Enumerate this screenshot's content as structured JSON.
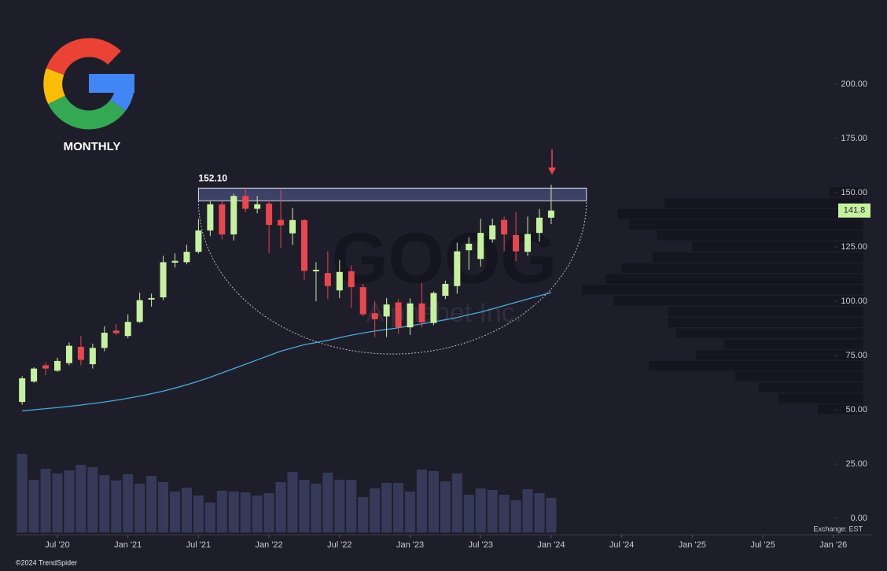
{
  "chart_data": {
    "type": "candlestick",
    "timeframe": "MONTHLY",
    "symbol": "GOOG",
    "company": "Alphabet Inc.",
    "x": [
      "2020-04",
      "2020-05",
      "2020-06",
      "2020-07",
      "2020-08",
      "2020-09",
      "2020-10",
      "2020-11",
      "2020-12",
      "2021-01",
      "2021-02",
      "2021-03",
      "2021-04",
      "2021-05",
      "2021-06",
      "2021-07",
      "2021-08",
      "2021-09",
      "2021-10",
      "2021-11",
      "2021-12",
      "2022-01",
      "2022-02",
      "2022-03",
      "2022-04",
      "2022-05",
      "2022-06",
      "2022-07",
      "2022-08",
      "2022-09",
      "2022-10",
      "2022-11",
      "2022-12",
      "2023-01",
      "2023-02",
      "2023-03",
      "2023-04",
      "2023-05",
      "2023-06",
      "2023-07",
      "2023-08",
      "2023-09",
      "2023-10",
      "2023-11",
      "2023-12",
      "2024-01"
    ],
    "open": [
      53.6,
      63,
      70.5,
      68,
      71.5,
      79,
      71,
      78.5,
      86.5,
      84,
      90.5,
      100.8,
      101.8,
      117.8,
      118,
      122.8,
      132.6,
      144.7,
      130.8,
      148.5,
      142.6,
      145,
      137.5,
      131.3,
      137.4,
      113.8,
      113,
      105,
      113.8,
      106.5,
      94.5,
      93,
      99.5,
      88,
      99,
      90,
      102.5,
      107,
      123.5,
      119.5,
      128.5,
      137.5,
      130.5,
      122.8,
      131.5,
      138.5
    ],
    "high": [
      65.5,
      69.6,
      72,
      74,
      81,
      84,
      80.5,
      88.5,
      89.5,
      94,
      104,
      103.5,
      121,
      122,
      126,
      138,
      146,
      146,
      149.5,
      152.1,
      148.5,
      146.5,
      151.5,
      143,
      138,
      118,
      123,
      119,
      116.5,
      108,
      100,
      101.5,
      101,
      101.3,
      108.5,
      104.5,
      109.5,
      127,
      129.5,
      138,
      138,
      139,
      141,
      139,
      142.5,
      153.7
    ],
    "low": [
      52.4,
      62.5,
      66,
      67.5,
      70.5,
      70.5,
      69,
      77,
      84.5,
      83,
      90,
      97.5,
      100.5,
      115.5,
      117,
      122,
      130,
      128.5,
      128,
      141,
      140.5,
      122.3,
      124.5,
      126,
      110,
      100,
      101,
      101.5,
      97,
      93,
      83.6,
      83.5,
      85,
      84.5,
      88,
      89,
      101,
      103.5,
      114.5,
      116,
      127,
      123,
      118.5,
      121,
      127.5,
      135.5
    ],
    "close": [
      64.5,
      69,
      69,
      72.5,
      79.5,
      73,
      78.5,
      85.5,
      85.3,
      90.5,
      100.5,
      101.5,
      118,
      118.6,
      122.8,
      132.6,
      144.7,
      130.8,
      148.5,
      142.6,
      144.7,
      135.2,
      135,
      137.4,
      114,
      114.5,
      107,
      113.5,
      106.5,
      94,
      91.7,
      98.5,
      88,
      99,
      90.3,
      103.8,
      108,
      123,
      126.5,
      131.5,
      135,
      130.8,
      123,
      131,
      138.5,
      141.8
    ],
    "up_color": "#c6f2a0",
    "down_color": "#e9464f",
    "ma": {
      "color": "#4aa9dc",
      "values": [
        49.5,
        50,
        50.5,
        51,
        51.6,
        52.2,
        52.9,
        53.6,
        54.4,
        55.3,
        56.3,
        57.4,
        58.6,
        60,
        61.5,
        63.2,
        65,
        67,
        69,
        71,
        73,
        75,
        77,
        78.5,
        80,
        81,
        82,
        83.2,
        84.4,
        85.4,
        86.3,
        87,
        87.8,
        88.7,
        89.6,
        90.5,
        91.5,
        92.5,
        93.8,
        95,
        96.5,
        98,
        99.5,
        101,
        102.5,
        104
      ]
    },
    "volume": {
      "color": "#363a58",
      "ylim": [
        0,
        105
      ],
      "values": [
        100,
        67,
        81,
        75,
        79,
        86,
        83,
        73,
        66,
        74,
        62,
        72,
        64,
        52,
        57,
        47,
        38,
        53,
        52,
        51,
        47,
        50,
        64,
        77,
        67,
        62,
        76,
        67,
        67,
        45,
        56,
        63,
        63,
        52,
        80,
        78,
        65,
        75,
        48,
        56,
        54,
        48,
        41,
        55,
        50,
        44
      ]
    },
    "volume_profile": {
      "color": "#15151f",
      "xlim": [
        0,
        400
      ],
      "prices": [
        150,
        145,
        140,
        135,
        130,
        125,
        120,
        115,
        110,
        105,
        100,
        95,
        90,
        85,
        80,
        75,
        70,
        65,
        60,
        55,
        50
      ],
      "values": [
        43,
        253,
        313,
        298,
        263,
        218,
        268,
        308,
        328,
        358,
        318,
        248,
        248,
        238,
        178,
        213,
        273,
        163,
        133,
        108,
        58
      ]
    },
    "ylim": [
      -7.6,
      238.8
    ],
    "yticks": [
      {
        "value": 0,
        "label": "0.00"
      },
      {
        "value": 25,
        "label": "25.00"
      },
      {
        "value": 50,
        "label": "50.00"
      },
      {
        "value": 75,
        "label": "75.00"
      },
      {
        "value": 100,
        "label": "100.00"
      },
      {
        "value": 125,
        "label": "125.00"
      },
      {
        "value": 150,
        "label": "150.00"
      },
      {
        "value": 175,
        "label": "175.00"
      },
      {
        "value": 200,
        "label": "200.00"
      }
    ],
    "xlim": [
      "2020-03",
      "2026-02"
    ],
    "xticks": [
      {
        "value": "2020-07",
        "label": "Jul '20"
      },
      {
        "value": "2021-01",
        "label": "Jan '21"
      },
      {
        "value": "2021-07",
        "label": "Jul '21"
      },
      {
        "value": "2022-01",
        "label": "Jan '22"
      },
      {
        "value": "2022-07",
        "label": "Jul '22"
      },
      {
        "value": "2023-01",
        "label": "Jan '23"
      },
      {
        "value": "2023-07",
        "label": "Jul '23"
      },
      {
        "value": "2024-01",
        "label": "Jan '24"
      },
      {
        "value": "2024-07",
        "label": "Jul '24"
      },
      {
        "value": "2025-01",
        "label": "Jan '25"
      },
      {
        "value": "2025-07",
        "label": "Jul '25"
      },
      {
        "value": "2026-01",
        "label": "Jan '26"
      }
    ],
    "resistance": {
      "value": 152.1,
      "label": "152.10",
      "bottom": 146.3,
      "start": "2021-07",
      "end": "2024-04"
    },
    "cup": {
      "start": "2021-07",
      "end": "2024-04",
      "bottom": 75.7
    },
    "last_price": 141.8,
    "exchange": "Exchange: EST",
    "copyright": "©2024 TrendSpider"
  }
}
